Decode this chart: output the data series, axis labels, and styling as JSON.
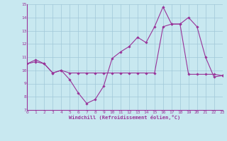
{
  "xlabel": "Windchill (Refroidissement éolien,°C)",
  "bg_color": "#c8e8f0",
  "line_color": "#993399",
  "grid_color": "#a0c8d8",
  "xlim": [
    0,
    23
  ],
  "ylim": [
    7,
    15
  ],
  "xticks": [
    0,
    1,
    2,
    3,
    4,
    5,
    6,
    7,
    8,
    9,
    10,
    11,
    12,
    13,
    14,
    15,
    16,
    17,
    18,
    19,
    20,
    21,
    22,
    23
  ],
  "yticks": [
    7,
    8,
    9,
    10,
    11,
    12,
    13,
    14,
    15
  ],
  "line1_x": [
    0,
    1,
    2,
    3,
    4,
    5,
    6,
    7,
    8,
    9,
    10,
    11,
    12,
    13,
    14,
    15,
    16,
    17,
    18,
    19,
    20,
    21,
    22,
    23
  ],
  "line1_y": [
    10.5,
    10.8,
    10.5,
    9.8,
    10.0,
    9.3,
    8.3,
    7.5,
    7.8,
    8.8,
    10.9,
    11.4,
    11.8,
    12.5,
    12.1,
    13.3,
    14.8,
    13.5,
    13.5,
    14.0,
    13.3,
    11.0,
    9.5,
    9.6
  ],
  "line2_x": [
    0,
    1,
    2,
    3,
    4,
    5,
    6,
    7,
    8,
    9,
    10,
    11,
    12,
    13,
    14,
    15,
    16,
    17,
    18,
    19,
    20,
    21,
    22,
    23
  ],
  "line2_y": [
    10.5,
    10.65,
    10.5,
    9.8,
    10.0,
    9.8,
    9.8,
    9.8,
    9.8,
    9.8,
    9.8,
    9.8,
    9.8,
    9.8,
    9.8,
    9.8,
    13.3,
    13.5,
    13.5,
    9.7,
    9.7,
    9.7,
    9.7,
    9.6
  ]
}
